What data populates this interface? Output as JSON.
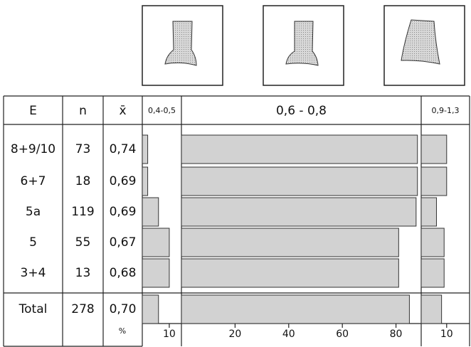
{
  "table": {
    "header": [
      "E",
      "n",
      "x̄"
    ],
    "rows": [
      [
        "8+9/10",
        73,
        "0,74"
      ],
      [
        "6+7",
        18,
        "0,69"
      ],
      [
        "5a",
        119,
        "0,69"
      ],
      [
        "5",
        55,
        "0,67"
      ],
      [
        "3+4",
        13,
        "0,68"
      ],
      [
        "Total",
        278,
        "0,70"
      ]
    ],
    "unit_label": "%"
  },
  "bars": [
    {
      "label": "0,4-0,5",
      "values": [
        2,
        2,
        6,
        10,
        10,
        6
      ],
      "xlim": [
        0,
        14.5
      ],
      "xticks": [
        10
      ]
    },
    {
      "label": "0,6 - 0,8",
      "values": [
        88,
        88,
        87.5,
        81,
        81,
        85
      ],
      "xlim": [
        0,
        89.4
      ],
      "xticks": [
        20,
        40,
        60,
        80
      ]
    },
    {
      "label": "0,9-1,3",
      "values": [
        10,
        10,
        6,
        9,
        9,
        8
      ],
      "xlim": [
        0,
        19
      ],
      "xticks": [
        10
      ]
    }
  ]
}
